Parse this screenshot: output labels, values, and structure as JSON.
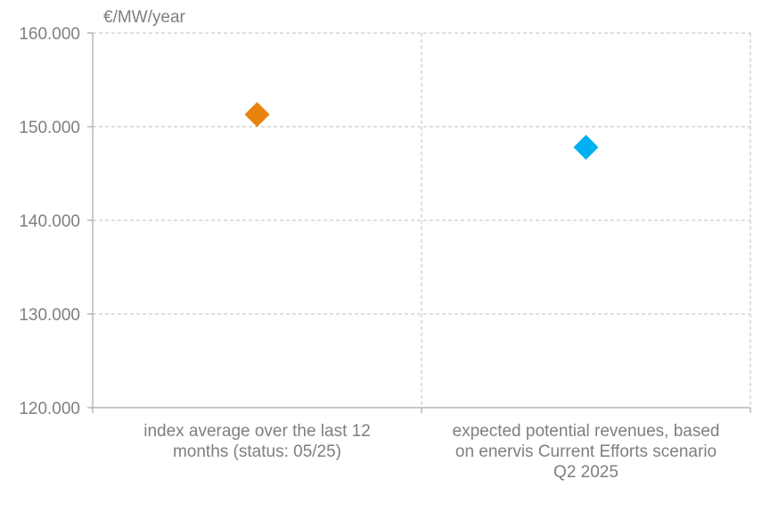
{
  "chart_data": {
    "type": "scatter",
    "unit_label": "€/MW/year",
    "ylim": [
      120000,
      160000
    ],
    "y_ticks": [
      {
        "value": 120000,
        "label": "120.000"
      },
      {
        "value": 130000,
        "label": "130.000"
      },
      {
        "value": 140000,
        "label": "140.000"
      },
      {
        "value": 150000,
        "label": "150.000"
      },
      {
        "value": 160000,
        "label": "160.000"
      }
    ],
    "grid": true,
    "marker": "diamond",
    "points": [
      {
        "category_lines": [
          "index average over the last 12",
          "months (status: 05/25)"
        ],
        "value": 151300,
        "color": "#e8830f"
      },
      {
        "category_lines": [
          "expected potential revenues, based",
          "on enervis Current Efforts scenario",
          "Q2 2025"
        ],
        "value": 147800,
        "color": "#00b0f0"
      }
    ]
  }
}
